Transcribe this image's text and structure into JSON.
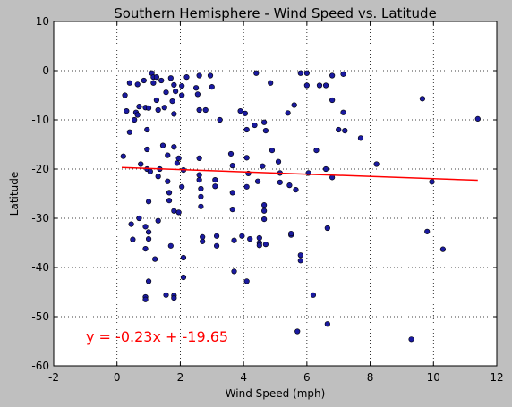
{
  "chart_data": {
    "type": "scatter",
    "title": "Southern Hemisphere - Wind Speed vs. Latitude",
    "xlabel": "Wind Speed (mph)",
    "ylabel": "Latitude",
    "xlim": [
      -2,
      12
    ],
    "ylim": [
      -60,
      10
    ],
    "xticks": [
      -2,
      0,
      2,
      4,
      6,
      8,
      10,
      12
    ],
    "yticks": [
      -60,
      -50,
      -40,
      -30,
      -20,
      -10,
      0,
      10
    ],
    "grid": true,
    "marker_color": "#1a1aa0",
    "marker_edge_color": "#000000",
    "regression": {
      "slope": -0.23,
      "intercept": -19.65,
      "x_range": [
        0.15,
        11.4
      ],
      "color": "#ff0000",
      "equation": "y = -0.23x + -19.65",
      "equation_color": "#ff0000"
    },
    "points": [
      [
        0.2,
        -17.4
      ],
      [
        0.25,
        -5
      ],
      [
        0.3,
        -8.2
      ],
      [
        0.4,
        -2.5
      ],
      [
        0.4,
        -12.5
      ],
      [
        0.45,
        -31.2
      ],
      [
        0.5,
        -34.3
      ],
      [
        0.55,
        -10
      ],
      [
        0.6,
        -8.5
      ],
      [
        0.65,
        -9
      ],
      [
        0.7,
        -7.3
      ],
      [
        0.65,
        -2.8
      ],
      [
        0.7,
        -30
      ],
      [
        0.75,
        -19
      ],
      [
        0.85,
        -2
      ],
      [
        0.9,
        -7.5
      ],
      [
        0.9,
        -31.7
      ],
      [
        0.9,
        -36.2
      ],
      [
        0.9,
        -46
      ],
      [
        0.9,
        -46.5
      ],
      [
        0.95,
        -12
      ],
      [
        0.95,
        -16
      ],
      [
        0.95,
        -20
      ],
      [
        1.0,
        -26.6
      ],
      [
        1.0,
        -32.8
      ],
      [
        1.0,
        -34.2
      ],
      [
        1.0,
        -42.8
      ],
      [
        1.0,
        -7.6
      ],
      [
        1.05,
        -20.5
      ],
      [
        1.1,
        -0.5
      ],
      [
        1.15,
        -1.3
      ],
      [
        1.15,
        -2.5
      ],
      [
        1.2,
        -38.3
      ],
      [
        1.25,
        -1.3
      ],
      [
        1.25,
        -6
      ],
      [
        1.3,
        -8
      ],
      [
        1.3,
        -21.5
      ],
      [
        1.3,
        -30.5
      ],
      [
        1.35,
        -20
      ],
      [
        1.4,
        -2
      ],
      [
        1.45,
        -15.2
      ],
      [
        1.5,
        -7.5
      ],
      [
        1.55,
        -4.4
      ],
      [
        1.55,
        -45.6
      ],
      [
        1.6,
        -17.2
      ],
      [
        1.6,
        -22.5
      ],
      [
        1.65,
        -26.4
      ],
      [
        1.65,
        -24.8
      ],
      [
        1.7,
        -1.5
      ],
      [
        1.7,
        -35.6
      ],
      [
        1.75,
        -6.2
      ],
      [
        1.8,
        -2.9
      ],
      [
        1.8,
        -8.8
      ],
      [
        1.8,
        -15.5
      ],
      [
        1.8,
        -28.5
      ],
      [
        1.8,
        -45.7
      ],
      [
        1.8,
        -46.2
      ],
      [
        1.85,
        -4.2
      ],
      [
        1.9,
        -18.8
      ],
      [
        1.95,
        -17.8
      ],
      [
        1.95,
        -28.8
      ],
      [
        2.05,
        -3.1
      ],
      [
        2.05,
        -5
      ],
      [
        2.05,
        -23.6
      ],
      [
        2.1,
        -20.2
      ],
      [
        2.1,
        -38
      ],
      [
        2.1,
        -42
      ],
      [
        2.2,
        -1.3
      ],
      [
        2.5,
        -3.5
      ],
      [
        2.55,
        -4.8
      ],
      [
        2.6,
        -8
      ],
      [
        2.6,
        -17.8
      ],
      [
        2.6,
        -21.2
      ],
      [
        2.6,
        -22.2
      ],
      [
        2.65,
        -24
      ],
      [
        2.65,
        -25.6
      ],
      [
        2.65,
        -27.6
      ],
      [
        2.7,
        -33.8
      ],
      [
        2.7,
        -34.7
      ],
      [
        2.6,
        -1
      ],
      [
        2.8,
        -8
      ],
      [
        2.95,
        -1
      ],
      [
        3.0,
        -3.3
      ],
      [
        3.1,
        -22.2
      ],
      [
        3.1,
        -23.5
      ],
      [
        3.15,
        -33.6
      ],
      [
        3.15,
        -35.6
      ],
      [
        3.25,
        -10
      ],
      [
        3.6,
        -16.9
      ],
      [
        3.65,
        -19.3
      ],
      [
        3.65,
        -24.8
      ],
      [
        3.65,
        -28.2
      ],
      [
        3.7,
        -34.5
      ],
      [
        3.7,
        -40.8
      ],
      [
        3.9,
        -8.2
      ],
      [
        3.95,
        -33.6
      ],
      [
        4.05,
        -8.7
      ],
      [
        4.1,
        -12
      ],
      [
        4.1,
        -17.7
      ],
      [
        4.1,
        -23.6
      ],
      [
        4.1,
        -42.8
      ],
      [
        4.15,
        -20.9
      ],
      [
        4.2,
        -34.2
      ],
      [
        4.35,
        -11.1
      ],
      [
        4.4,
        -0.5
      ],
      [
        4.45,
        -22.5
      ],
      [
        4.5,
        -35
      ],
      [
        4.5,
        -35.5
      ],
      [
        4.5,
        -34
      ],
      [
        4.6,
        -19.4
      ],
      [
        4.65,
        -10.5
      ],
      [
        4.65,
        -27.3
      ],
      [
        4.65,
        -28.5
      ],
      [
        4.65,
        -30.2
      ],
      [
        4.7,
        -12.2
      ],
      [
        4.7,
        -35.3
      ],
      [
        4.85,
        -2.5
      ],
      [
        4.9,
        -16.2
      ],
      [
        5.1,
        -18.5
      ],
      [
        5.15,
        -20.8
      ],
      [
        5.15,
        -22.7
      ],
      [
        5.4,
        -8.6
      ],
      [
        5.45,
        -23.3
      ],
      [
        5.5,
        -33.4
      ],
      [
        5.5,
        -33.1
      ],
      [
        5.6,
        -7
      ],
      [
        5.65,
        -24.2
      ],
      [
        5.7,
        -53
      ],
      [
        5.8,
        -0.5
      ],
      [
        5.8,
        -37.5
      ],
      [
        5.8,
        -38.6
      ],
      [
        6.0,
        -0.5
      ],
      [
        6.0,
        -3
      ],
      [
        6.05,
        -20.8
      ],
      [
        6.2,
        -45.6
      ],
      [
        6.3,
        -16.2
      ],
      [
        6.4,
        -3
      ],
      [
        6.6,
        -3
      ],
      [
        6.6,
        -20
      ],
      [
        6.65,
        -32
      ],
      [
        6.65,
        -51.5
      ],
      [
        6.8,
        -1
      ],
      [
        6.8,
        -6
      ],
      [
        6.8,
        -21.7
      ],
      [
        7.0,
        -12
      ],
      [
        7.15,
        -0.7
      ],
      [
        7.15,
        -8.5
      ],
      [
        7.2,
        -12.2
      ],
      [
        7.7,
        -13.7
      ],
      [
        8.2,
        -19
      ],
      [
        9.3,
        -54.6
      ],
      [
        9.65,
        -5.7
      ],
      [
        9.8,
        -32.7
      ],
      [
        9.95,
        -22.6
      ],
      [
        10.3,
        -36.3
      ],
      [
        11.4,
        -9.8
      ]
    ]
  }
}
